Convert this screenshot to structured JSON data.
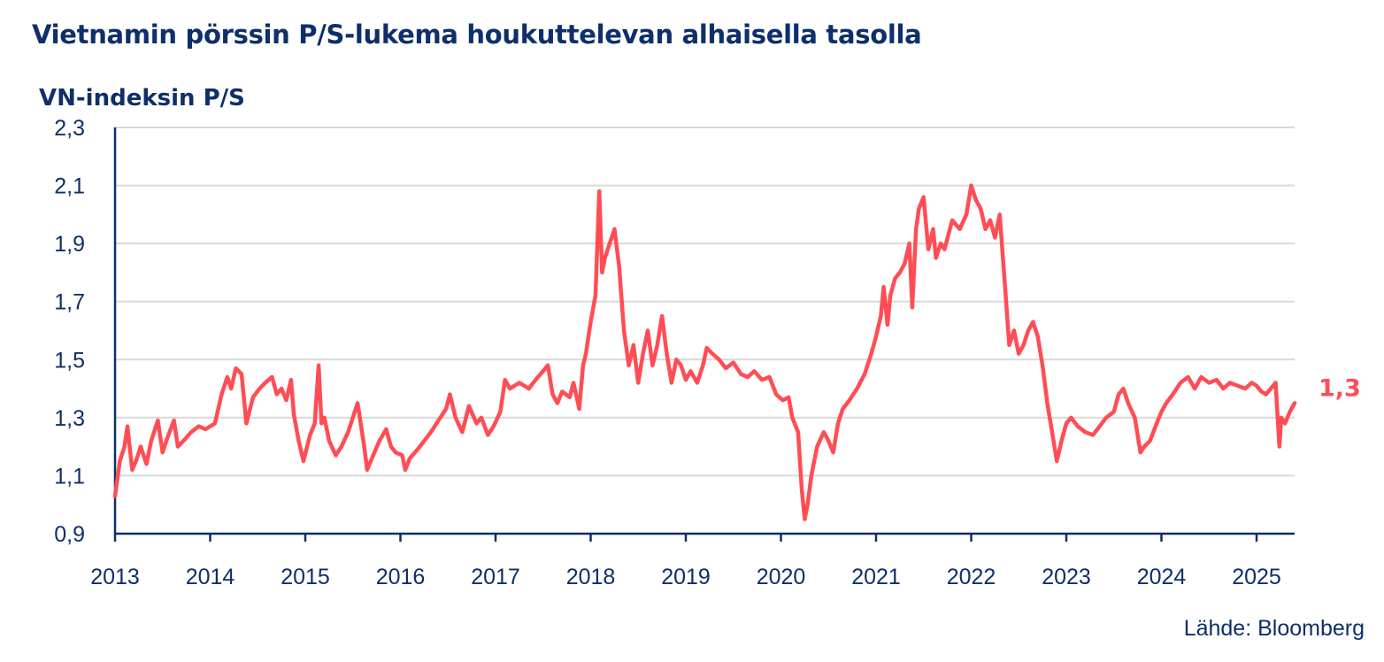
{
  "header": {
    "title": "Vietnamin pörssin P/S-lukema houkuttelevan alhaisella tasolla",
    "ylabel": "VN-indeksin P/S"
  },
  "footer": {
    "source": "Lähde: Bloomberg"
  },
  "colors": {
    "line": "#ff4d55",
    "axis": "#0d2f6b",
    "grid": "#d9d9d9",
    "text": "#0d2f6b"
  },
  "chart_data": {
    "type": "line",
    "title": "Vietnamin pörssin P/S-lukema houkuttelevan alhaisella tasolla",
    "ylabel": "VN-indeksin P/S",
    "xlabel": "",
    "ylim": [
      0.9,
      2.3
    ],
    "xlim": [
      2013.0,
      2025.4
    ],
    "y_ticks": [
      "0,9",
      "1,1",
      "1,3",
      "1,5",
      "1,7",
      "1,9",
      "2,1",
      "2,3"
    ],
    "y_tick_values": [
      0.9,
      1.1,
      1.3,
      1.5,
      1.7,
      1.9,
      2.1,
      2.3
    ],
    "x_ticks": [
      "2013",
      "2014",
      "2015",
      "2016",
      "2017",
      "2018",
      "2019",
      "2020",
      "2021",
      "2022",
      "2023",
      "2024",
      "2025"
    ],
    "x_tick_values": [
      2013,
      2014,
      2015,
      2016,
      2017,
      2018,
      2019,
      2020,
      2021,
      2022,
      2023,
      2024,
      2025
    ],
    "grid": true,
    "last_value_label": "1,3",
    "series": [
      {
        "x": [
          2013.0,
          2013.05,
          2013.1,
          2013.13,
          2013.18,
          2013.22,
          2013.27,
          2013.33,
          2013.38,
          2013.45,
          2013.5,
          2013.55,
          2013.62,
          2013.66,
          2013.72,
          2013.8,
          2013.88,
          2013.95,
          2014.05,
          2014.12,
          2014.18,
          2014.22,
          2014.27,
          2014.33,
          2014.38,
          2014.45,
          2014.52,
          2014.58,
          2014.65,
          2014.7,
          2014.75,
          2014.8,
          2014.85,
          2014.88,
          2014.93,
          2014.98,
          2015.05,
          2015.1,
          2015.14,
          2015.17,
          2015.2,
          2015.25,
          2015.32,
          2015.38,
          2015.45,
          2015.5,
          2015.55,
          2015.62,
          2015.65,
          2015.7,
          2015.78,
          2015.85,
          2015.9,
          2015.95,
          2016.02,
          2016.05,
          2016.1,
          2016.18,
          2016.25,
          2016.32,
          2016.4,
          2016.48,
          2016.52,
          2016.58,
          2016.65,
          2016.72,
          2016.8,
          2016.85,
          2016.92,
          2016.98,
          2017.05,
          2017.1,
          2017.15,
          2017.25,
          2017.35,
          2017.42,
          2017.5,
          2017.55,
          2017.6,
          2017.65,
          2017.7,
          2017.78,
          2017.82,
          2017.88,
          2017.92,
          2017.95,
          2018.0,
          2018.05,
          2018.09,
          2018.12,
          2018.15,
          2018.2,
          2018.25,
          2018.3,
          2018.35,
          2018.4,
          2018.45,
          2018.5,
          2018.55,
          2018.6,
          2018.65,
          2018.7,
          2018.75,
          2018.8,
          2018.85,
          2018.9,
          2018.95,
          2019.0,
          2019.05,
          2019.12,
          2019.18,
          2019.22,
          2019.28,
          2019.35,
          2019.42,
          2019.5,
          2019.58,
          2019.65,
          2019.72,
          2019.8,
          2019.88,
          2019.95,
          2020.02,
          2020.08,
          2020.12,
          2020.18,
          2020.22,
          2020.25,
          2020.28,
          2020.32,
          2020.38,
          2020.45,
          2020.5,
          2020.55,
          2020.6,
          2020.65,
          2020.72,
          2020.8,
          2020.88,
          2020.95,
          2021.0,
          2021.05,
          2021.08,
          2021.12,
          2021.15,
          2021.2,
          2021.25,
          2021.3,
          2021.35,
          2021.38,
          2021.42,
          2021.45,
          2021.5,
          2021.55,
          2021.6,
          2021.63,
          2021.68,
          2021.72,
          2021.8,
          2021.88,
          2021.95,
          2022.0,
          2022.05,
          2022.1,
          2022.15,
          2022.2,
          2022.25,
          2022.3,
          2022.35,
          2022.4,
          2022.45,
          2022.5,
          2022.55,
          2022.6,
          2022.65,
          2022.7,
          2022.75,
          2022.8,
          2022.85,
          2022.9,
          2022.95,
          2023.0,
          2023.05,
          2023.12,
          2023.2,
          2023.28,
          2023.35,
          2023.42,
          2023.5,
          2023.55,
          2023.6,
          2023.65,
          2023.72,
          2023.78,
          2023.82,
          2023.88,
          2023.95,
          2024.0,
          2024.05,
          2024.12,
          2024.2,
          2024.28,
          2024.35,
          2024.42,
          2024.5,
          2024.58,
          2024.65,
          2024.72,
          2024.8,
          2024.88,
          2024.95,
          2025.0,
          2025.05,
          2025.1,
          2025.15,
          2025.2,
          2025.24,
          2025.26,
          2025.3,
          2025.35,
          2025.4
        ],
        "values": [
          1.03,
          1.15,
          1.2,
          1.27,
          1.12,
          1.15,
          1.2,
          1.14,
          1.22,
          1.29,
          1.18,
          1.23,
          1.29,
          1.2,
          1.22,
          1.25,
          1.27,
          1.26,
          1.28,
          1.38,
          1.44,
          1.4,
          1.47,
          1.45,
          1.28,
          1.37,
          1.4,
          1.42,
          1.44,
          1.38,
          1.4,
          1.36,
          1.43,
          1.31,
          1.22,
          1.15,
          1.24,
          1.28,
          1.48,
          1.28,
          1.3,
          1.22,
          1.17,
          1.2,
          1.25,
          1.3,
          1.35,
          1.2,
          1.12,
          1.16,
          1.22,
          1.26,
          1.2,
          1.18,
          1.17,
          1.12,
          1.16,
          1.19,
          1.22,
          1.25,
          1.29,
          1.33,
          1.38,
          1.3,
          1.25,
          1.34,
          1.28,
          1.3,
          1.24,
          1.27,
          1.32,
          1.43,
          1.4,
          1.42,
          1.4,
          1.43,
          1.46,
          1.48,
          1.38,
          1.35,
          1.39,
          1.37,
          1.42,
          1.33,
          1.48,
          1.52,
          1.63,
          1.72,
          2.08,
          1.8,
          1.85,
          1.9,
          1.95,
          1.82,
          1.6,
          1.48,
          1.55,
          1.42,
          1.52,
          1.6,
          1.48,
          1.55,
          1.65,
          1.52,
          1.42,
          1.5,
          1.48,
          1.43,
          1.46,
          1.42,
          1.48,
          1.54,
          1.52,
          1.5,
          1.47,
          1.49,
          1.45,
          1.44,
          1.46,
          1.43,
          1.44,
          1.38,
          1.36,
          1.37,
          1.3,
          1.25,
          1.05,
          0.95,
          1.0,
          1.1,
          1.2,
          1.25,
          1.22,
          1.18,
          1.28,
          1.33,
          1.36,
          1.4,
          1.45,
          1.52,
          1.58,
          1.65,
          1.75,
          1.62,
          1.72,
          1.78,
          1.8,
          1.83,
          1.9,
          1.68,
          1.95,
          2.02,
          2.06,
          1.88,
          1.95,
          1.85,
          1.9,
          1.88,
          1.98,
          1.95,
          2.0,
          2.1,
          2.05,
          2.02,
          1.95,
          1.98,
          1.92,
          2.0,
          1.78,
          1.55,
          1.6,
          1.52,
          1.55,
          1.6,
          1.63,
          1.58,
          1.48,
          1.35,
          1.25,
          1.15,
          1.22,
          1.28,
          1.3,
          1.27,
          1.25,
          1.24,
          1.27,
          1.3,
          1.32,
          1.38,
          1.4,
          1.35,
          1.3,
          1.18,
          1.2,
          1.22,
          1.28,
          1.32,
          1.35,
          1.38,
          1.42,
          1.44,
          1.4,
          1.44,
          1.42,
          1.43,
          1.4,
          1.42,
          1.41,
          1.4,
          1.42,
          1.41,
          1.39,
          1.38,
          1.4,
          1.42,
          1.2,
          1.3,
          1.28,
          1.32,
          1.35
        ]
      }
    ]
  }
}
